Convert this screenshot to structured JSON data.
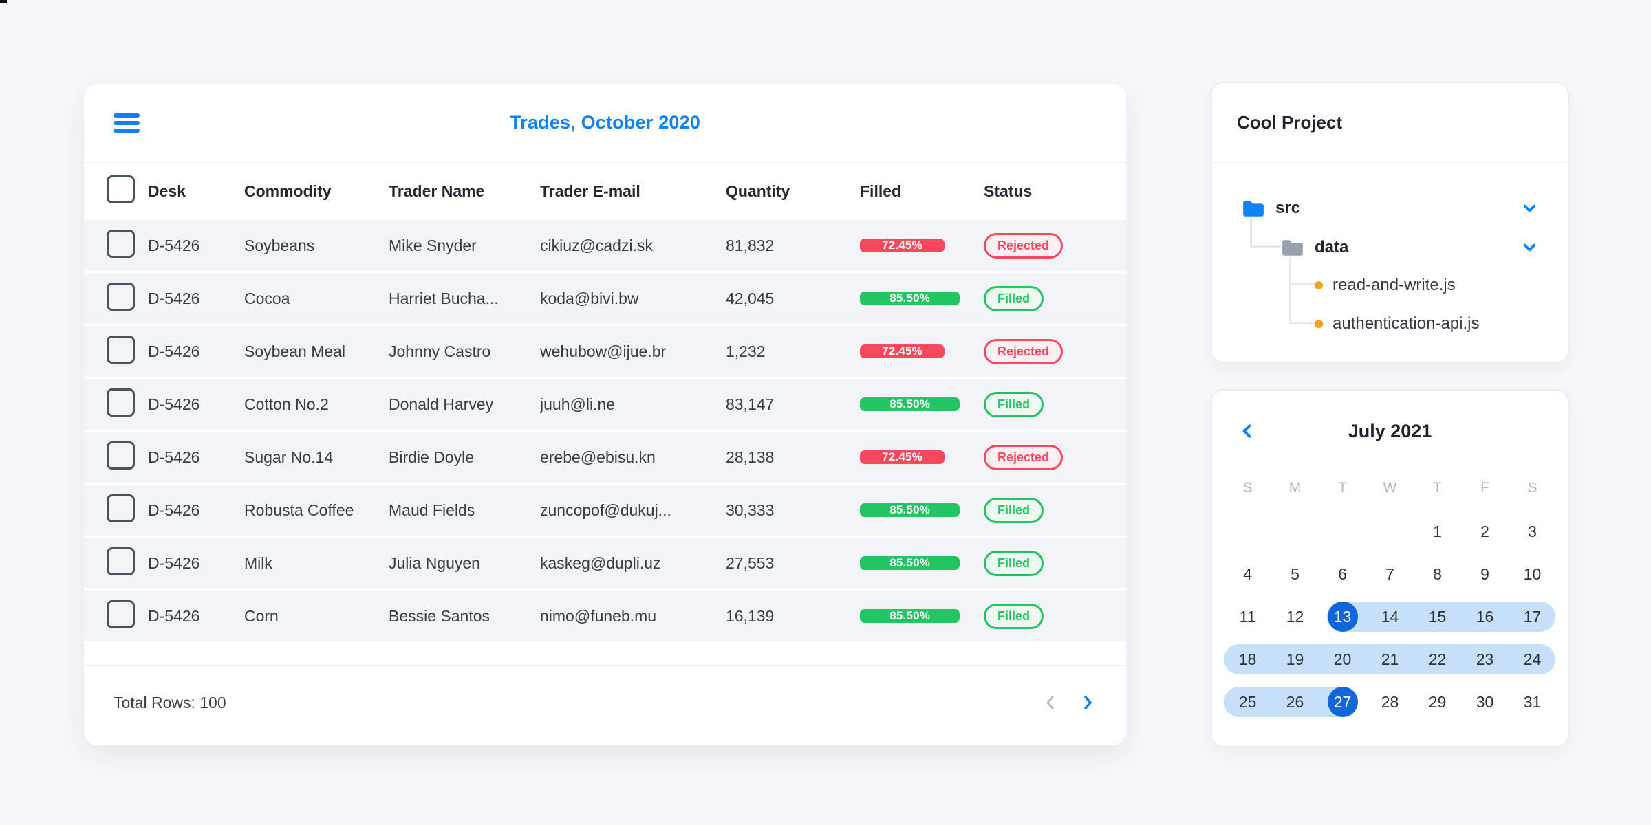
{
  "colors": {
    "accent_blue": "#0d83f5",
    "red": "#f8485e",
    "red_soft": "#fdf0f2",
    "green": "#23c462",
    "green_soft": "#eefaf1",
    "range_endpoint": "#1166d8",
    "range_band": "#c7e0f9",
    "pager_disabled": "#b9c0ca"
  },
  "table": {
    "menu_icon": "hamburger-menu-icon",
    "title": "Trades, October 2020",
    "columns": [
      "Desk",
      "Commodity",
      "Trader Name",
      "Trader E-mail",
      "Quantity",
      "Filled",
      "Status"
    ],
    "rows": [
      {
        "desk": "D-5426",
        "commodity": "Soybeans",
        "trader_name": "Mike Snyder",
        "trader_email": "cikiuz@cadzi.sk",
        "quantity": "81,832",
        "filled_pct": "72.45%",
        "filled_value": 72.45,
        "status": "Rejected"
      },
      {
        "desk": "D-5426",
        "commodity": "Cocoa",
        "trader_name": "Harriet Bucha...",
        "trader_email": "koda@bivi.bw",
        "quantity": "42,045",
        "filled_pct": "85.50%",
        "filled_value": 85.5,
        "status": "Filled"
      },
      {
        "desk": "D-5426",
        "commodity": "Soybean Meal",
        "trader_name": "Johnny Castro",
        "trader_email": "wehubow@ijue.br",
        "quantity": "1,232",
        "filled_pct": "72.45%",
        "filled_value": 72.45,
        "status": "Rejected"
      },
      {
        "desk": "D-5426",
        "commodity": "Cotton No.2",
        "trader_name": "Donald Harvey",
        "trader_email": "juuh@li.ne",
        "quantity": "83,147",
        "filled_pct": "85.50%",
        "filled_value": 85.5,
        "status": "Filled"
      },
      {
        "desk": "D-5426",
        "commodity": "Sugar No.14",
        "trader_name": "Birdie Doyle",
        "trader_email": "erebe@ebisu.kn",
        "quantity": "28,138",
        "filled_pct": "72.45%",
        "filled_value": 72.45,
        "status": "Rejected"
      },
      {
        "desk": "D-5426",
        "commodity": "Robusta Coffee",
        "trader_name": "Maud Fields",
        "trader_email": "zuncopof@dukuj...",
        "quantity": "30,333",
        "filled_pct": "85.50%",
        "filled_value": 85.5,
        "status": "Filled"
      },
      {
        "desk": "D-5426",
        "commodity": "Milk",
        "trader_name": "Julia Nguyen",
        "trader_email": "kaskeg@dupli.uz",
        "quantity": "27,553",
        "filled_pct": "85.50%",
        "filled_value": 85.5,
        "status": "Filled"
      },
      {
        "desk": "D-5426",
        "commodity": "Corn",
        "trader_name": "Bessie Santos",
        "trader_email": "nimo@funeb.mu",
        "quantity": "16,139",
        "filled_pct": "85.50%",
        "filled_value": 85.5,
        "status": "Filled"
      }
    ],
    "footer": {
      "total_label": "Total Rows: 100",
      "prev_icon": "chevron-left-icon",
      "next_icon": "chevron-right-icon"
    }
  },
  "project": {
    "title": "Cool Project",
    "tree": {
      "folders": [
        {
          "name": "src",
          "icon": "folder-icon",
          "chevron": "chevron-down-icon"
        },
        {
          "name": "data",
          "icon": "folder-icon",
          "chevron": "chevron-down-icon"
        }
      ],
      "files": [
        {
          "name": "read-and-write.js",
          "icon": "file-dot-icon"
        },
        {
          "name": "authentication-api.js",
          "icon": "file-dot-icon"
        }
      ]
    }
  },
  "calendar": {
    "prev_icon": "chevron-left-icon",
    "title": "July 2021",
    "weekdays": [
      "S",
      "M",
      "T",
      "W",
      "T",
      "F",
      "S"
    ],
    "range_start_day": 13,
    "range_end_day": 27,
    "weeks": [
      [
        null,
        null,
        null,
        null,
        {
          "d": 1
        },
        {
          "d": 2
        },
        {
          "d": 3
        }
      ],
      [
        {
          "d": 4
        },
        {
          "d": 5
        },
        {
          "d": 6
        },
        {
          "d": 7
        },
        {
          "d": 8
        },
        {
          "d": 9
        },
        {
          "d": 10
        }
      ],
      [
        {
          "d": 11
        },
        {
          "d": 12
        },
        {
          "d": 13,
          "state": "start"
        },
        {
          "d": 14,
          "state": "range"
        },
        {
          "d": 15,
          "state": "range"
        },
        {
          "d": 16,
          "state": "range"
        },
        {
          "d": 17,
          "state": "range"
        }
      ],
      [
        {
          "d": 18,
          "state": "range"
        },
        {
          "d": 19,
          "state": "range"
        },
        {
          "d": 20,
          "state": "range"
        },
        {
          "d": 21,
          "state": "range"
        },
        {
          "d": 22,
          "state": "range"
        },
        {
          "d": 23,
          "state": "range"
        },
        {
          "d": 24,
          "state": "range"
        }
      ],
      [
        {
          "d": 25,
          "state": "range"
        },
        {
          "d": 26,
          "state": "range"
        },
        {
          "d": 27,
          "state": "end"
        },
        {
          "d": 28
        },
        {
          "d": 29
        },
        {
          "d": 30
        },
        {
          "d": 31
        }
      ]
    ]
  }
}
